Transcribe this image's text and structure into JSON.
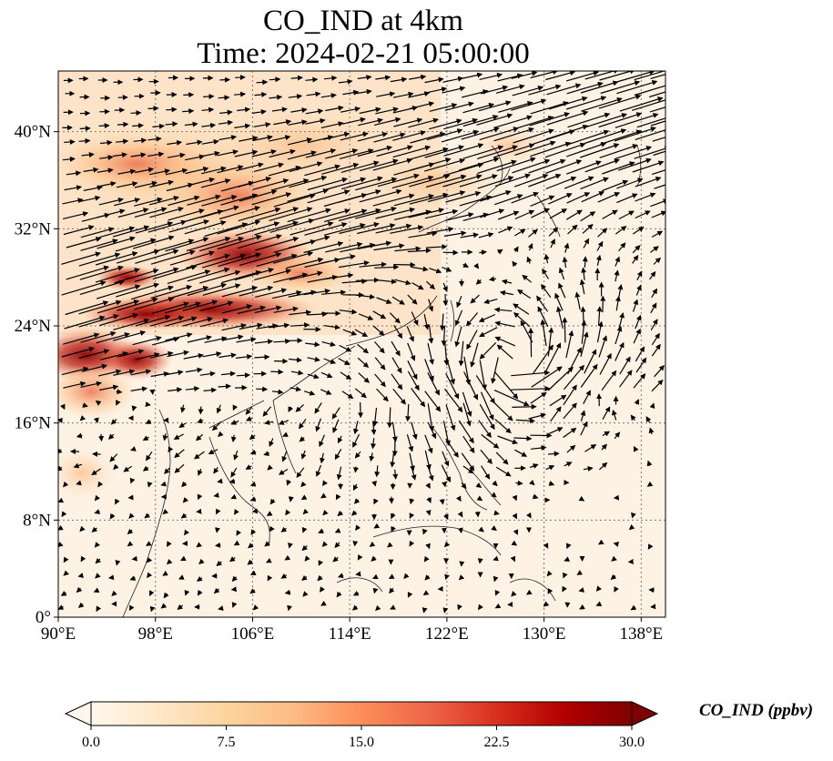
{
  "title": {
    "line1": "CO_IND at 4km",
    "line2": "Time: 2024-02-21 05:00:00"
  },
  "map": {
    "lon_range": [
      90,
      140
    ],
    "lat_range": [
      0,
      45
    ],
    "gridlines": "dotted",
    "x_ticks": [
      "90°E",
      "98°E",
      "106°E",
      "114°E",
      "122°E",
      "130°E",
      "138°E"
    ],
    "y_ticks": [
      "0°",
      "8°N",
      "16°N",
      "24°N",
      "32°N",
      "40°N"
    ],
    "overlay": "wind vectors",
    "colormap": "OrRd"
  },
  "colorbar": {
    "title": "CO_IND (ppbv)",
    "min": 0.0,
    "max": 30.0,
    "extend": "both",
    "ticks": [
      "0.0",
      "7.5",
      "15.0",
      "22.5",
      "30.0"
    ],
    "colors": [
      "#fff7ec",
      "#fee8c8",
      "#fdd49e",
      "#fdbb84",
      "#fc8d59",
      "#ef6548",
      "#d7301f",
      "#b30000",
      "#7f0000"
    ]
  }
}
